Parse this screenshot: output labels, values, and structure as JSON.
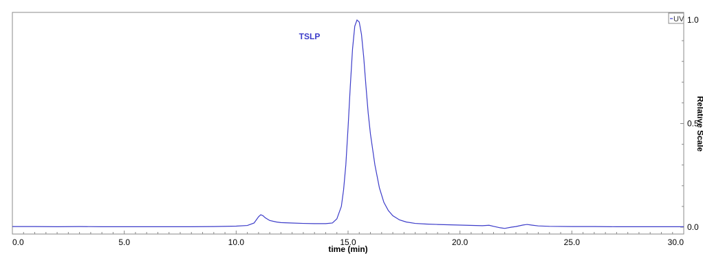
{
  "chart_data": {
    "type": "line",
    "title": "",
    "xlabel": "time (min)",
    "ylabel": "Relative Scale",
    "xlim": [
      0.0,
      30.0
    ],
    "ylim": [
      0.0,
      1.0
    ],
    "x_ticks": [
      "0.0",
      "5.0",
      "10.0",
      "15.0",
      "20.0",
      "25.0",
      "30.0"
    ],
    "y_ticks": [
      "0.0",
      "0.5",
      "1.0"
    ],
    "grid": false,
    "legend": "top-right",
    "color": "#3b3bc9",
    "series": [
      {
        "name": "UV",
        "x": [
          0.0,
          1.0,
          2.0,
          3.0,
          4.0,
          5.0,
          6.0,
          7.0,
          8.0,
          9.0,
          10.0,
          10.5,
          10.8,
          11.0,
          11.1,
          11.2,
          11.3,
          11.5,
          11.8,
          12.0,
          12.5,
          13.0,
          13.5,
          14.0,
          14.3,
          14.5,
          14.7,
          14.8,
          14.9,
          15.0,
          15.1,
          15.2,
          15.3,
          15.4,
          15.5,
          15.6,
          15.7,
          15.8,
          15.9,
          16.0,
          16.2,
          16.4,
          16.6,
          16.8,
          17.0,
          17.3,
          17.6,
          18.0,
          18.5,
          19.0,
          20.0,
          21.0,
          21.3,
          21.5,
          21.8,
          22.0,
          22.3,
          22.5,
          22.8,
          23.0,
          23.2,
          23.5,
          24.0,
          25.0,
          26.0,
          27.0,
          28.0,
          29.0,
          30.0
        ],
        "values": [
          0.003,
          0.003,
          0.002,
          0.003,
          0.002,
          0.002,
          0.002,
          0.002,
          0.002,
          0.003,
          0.005,
          0.008,
          0.02,
          0.05,
          0.06,
          0.055,
          0.045,
          0.032,
          0.025,
          0.022,
          0.02,
          0.018,
          0.017,
          0.017,
          0.02,
          0.04,
          0.1,
          0.18,
          0.3,
          0.48,
          0.68,
          0.86,
          0.97,
          1.0,
          0.99,
          0.93,
          0.82,
          0.68,
          0.55,
          0.45,
          0.3,
          0.19,
          0.12,
          0.08,
          0.055,
          0.035,
          0.025,
          0.018,
          0.015,
          0.013,
          0.01,
          0.007,
          0.009,
          0.004,
          -0.003,
          -0.006,
          0.0,
          0.003,
          0.01,
          0.013,
          0.01,
          0.006,
          0.004,
          0.003,
          0.003,
          0.002,
          0.002,
          0.002,
          0.002
        ]
      }
    ],
    "annotations": [
      {
        "text": "TSLP",
        "x": 15.4,
        "y": 0.92
      }
    ]
  },
  "legend": {
    "label": "UV"
  },
  "labels": {
    "xlabel": "time (min)",
    "ylabel": "Relative Scale",
    "peak": "TSLP"
  }
}
